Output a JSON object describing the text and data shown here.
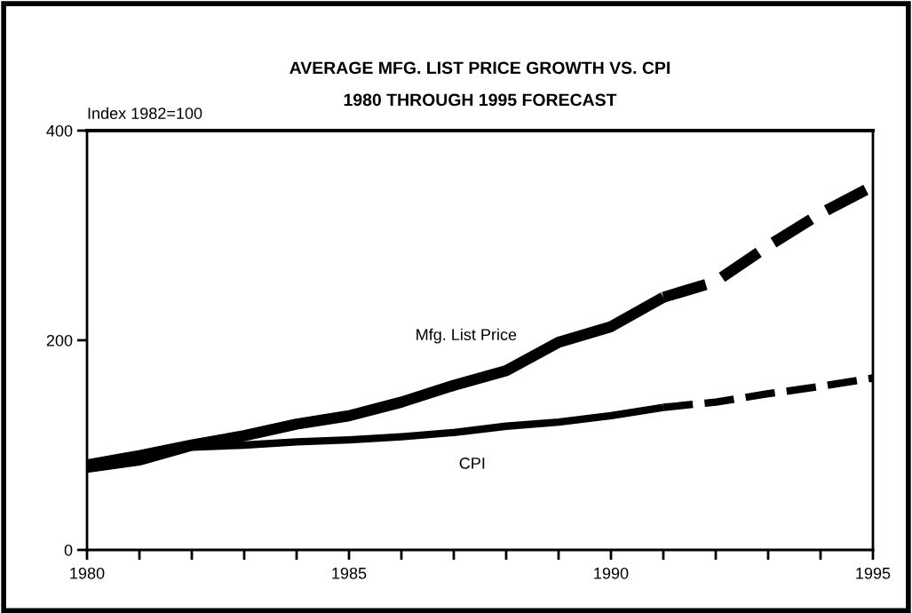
{
  "chart_data": {
    "type": "line",
    "title": "AVERAGE MFG. LIST PRICE GROWTH VS. CPI",
    "subtitle": "1980 THROUGH 1995 FORECAST",
    "ylabel": "Index 1982=100",
    "series": [
      {
        "name": "Mfg. List Price",
        "color": "#000000",
        "line_style": "solid",
        "x": [
          1980,
          1981,
          1982,
          1983,
          1984,
          1985,
          1986,
          1987,
          1988,
          1989,
          1990,
          1991
        ],
        "values": [
          81,
          90,
          100,
          109,
          120,
          128,
          141,
          157,
          171,
          198,
          213,
          241
        ]
      },
      {
        "color": "#000000",
        "line_style": "dashed",
        "x": [
          1991,
          1992,
          1993,
          1994,
          1995
        ],
        "values": [
          241,
          256,
          290,
          321,
          347
        ]
      },
      {
        "name": "CPI",
        "color": "#000000",
        "line_style": "solid",
        "x": [
          1980,
          1981,
          1982,
          1983,
          1984,
          1985,
          1986,
          1987,
          1988,
          1989,
          1990,
          1991
        ],
        "values": [
          77,
          84,
          98,
          100,
          103,
          105,
          108,
          112,
          118,
          122,
          128,
          136
        ]
      },
      {
        "color": "#000000",
        "line_style": "dashed",
        "x": [
          1991,
          1992,
          1993,
          1994,
          1995
        ],
        "values": [
          136,
          141,
          149,
          156,
          164
        ]
      }
    ],
    "xlim": [
      1980,
      1995
    ],
    "xticks": [
      1980,
      {
        "value": 1981,
        "label": null
      },
      {
        "value": 1982,
        "label": null
      },
      {
        "value": 1983,
        "label": null
      },
      {
        "value": 1984,
        "label": null
      },
      1985,
      {
        "value": 1986,
        "label": null
      },
      {
        "value": 1987,
        "label": null
      },
      {
        "value": 1988,
        "label": null
      },
      {
        "value": 1989,
        "label": null
      },
      1990,
      {
        "value": 1991,
        "label": null
      },
      {
        "value": 1992,
        "label": null
      },
      {
        "value": 1993,
        "label": null
      },
      {
        "value": 1994,
        "label": null
      },
      1995
    ],
    "ylim": [
      0,
      400
    ],
    "yticks": [
      0,
      200,
      400
    ],
    "grid": false,
    "legend": false,
    "marker": "none"
  }
}
